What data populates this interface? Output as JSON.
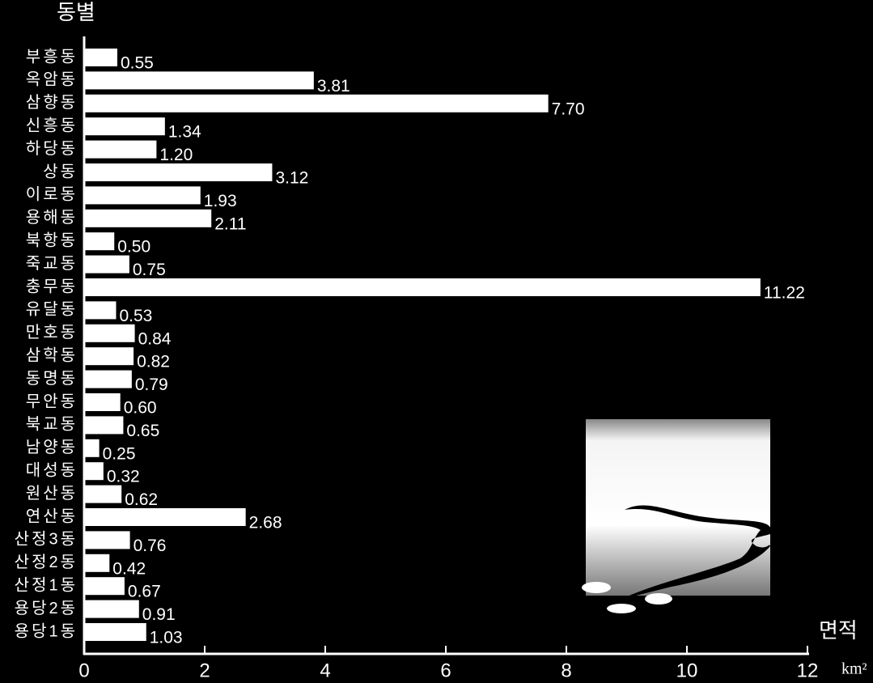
{
  "chart_data": {
    "type": "bar",
    "orientation": "horizontal",
    "y_label": "동별",
    "x_label": "면적",
    "x_unit": "km²",
    "categories": [
      "부흥동",
      "옥암동",
      "삼향동",
      "신흥동",
      "하당동",
      "상동",
      "이로동",
      "용해동",
      "북항동",
      "죽교동",
      "충무동",
      "유달동",
      "만호동",
      "삼학동",
      "동명동",
      "무안동",
      "북교동",
      "남양동",
      "대성동",
      "원산동",
      "연산동",
      "산정3동",
      "산정2동",
      "산정1동",
      "용당2동",
      "용당1동"
    ],
    "values": [
      0.55,
      3.81,
      7.7,
      1.34,
      1.2,
      3.12,
      1.93,
      2.11,
      0.5,
      0.75,
      11.22,
      0.53,
      0.84,
      0.82,
      0.79,
      0.6,
      0.65,
      0.25,
      0.32,
      0.62,
      2.68,
      0.76,
      0.42,
      0.67,
      0.91,
      1.03
    ],
    "value_labels": [
      "0.55",
      "3.81",
      "7.70",
      "1.34",
      "1.20",
      "3.12",
      "1.93",
      "2.11",
      "0.50",
      "0.75",
      "11.22",
      "0.53",
      "0.84",
      "0.82",
      "0.79",
      "0.60",
      "0.65",
      "0.25",
      "0.32",
      "0.62",
      "2.68",
      "0.76",
      "0.42",
      "0.67",
      "0.91",
      "1.03"
    ],
    "color": "#ffffff",
    "xlim": [
      0,
      12
    ],
    "xticks": [
      0,
      2,
      4,
      6,
      8,
      10,
      12
    ]
  }
}
